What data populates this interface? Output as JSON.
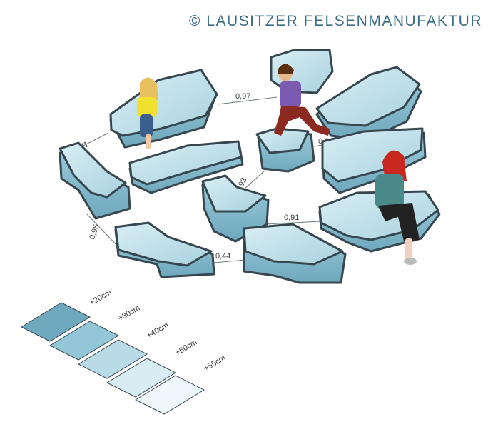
{
  "copyright": "© LAUSITZER FELSENMANUFAKTUR",
  "distances": [
    "0,97",
    "0,71",
    "0,34",
    "0,93",
    "0,91",
    "0,95",
    "0,44"
  ],
  "legend": [
    {
      "label": "+20cm",
      "color": "#6ea9bf"
    },
    {
      "label": "+30cm",
      "color": "#93c6d7"
    },
    {
      "label": "+40cm",
      "color": "#b9dbe7"
    },
    {
      "label": "+50cm",
      "color": "#d8ecf3"
    },
    {
      "label": "+55cm",
      "color": "#eef7fa"
    }
  ],
  "colors": {
    "block_top": "#bfe0ea",
    "block_side": "#8fc0d1",
    "outline": "#37474f"
  }
}
